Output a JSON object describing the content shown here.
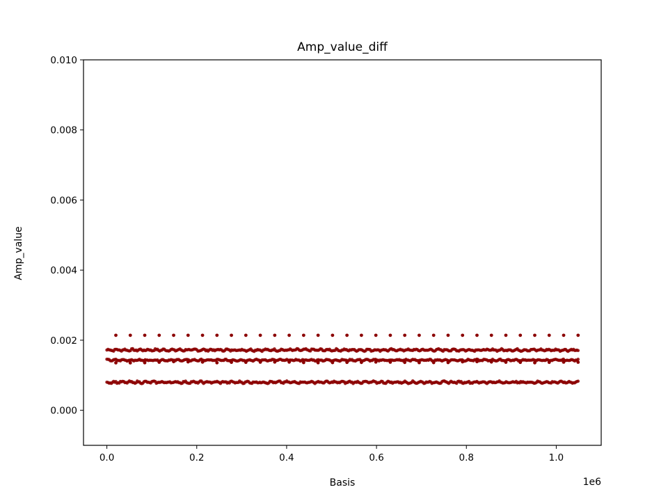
{
  "chart_data": {
    "type": "scatter",
    "title": "Amp_value_diff",
    "xlabel": "Basis",
    "ylabel": "Amp_value",
    "x_offset_text": "1e6",
    "xlim": [
      -0.052,
      1.1
    ],
    "ylim": [
      -0.001,
      0.01
    ],
    "x_ticks": [
      0.0,
      0.2,
      0.4,
      0.6,
      0.8,
      1.0
    ],
    "x_tick_labels": [
      "0.0",
      "0.2",
      "0.4",
      "0.6",
      "0.8",
      "1.0"
    ],
    "y_ticks": [
      0.0,
      0.002,
      0.004,
      0.006,
      0.008,
      0.01
    ],
    "y_tick_labels": [
      "0.000",
      "0.002",
      "0.004",
      "0.006",
      "0.008",
      "0.010"
    ],
    "grid": false,
    "marker_color": "#8b0000",
    "series": [
      {
        "x_start": 0.0,
        "x_end": 1.048576,
        "y_center": 0.00172,
        "y_jitter": 2e-05,
        "dense": true
      },
      {
        "x_start": 0.0,
        "x_end": 1.048576,
        "y_center": 0.00143,
        "y_jitter": 1.5e-05,
        "dense": true
      },
      {
        "x_start": 0.0,
        "x_end": 1.048576,
        "y_center": 0.0008,
        "y_jitter": 2e-05,
        "dense": true
      },
      {
        "x_start": 0.02,
        "x_end": 1.048576,
        "y_center": 0.00214,
        "y_jitter": 0.0,
        "dense": false
      },
      {
        "x_start": 0.02,
        "x_end": 1.048576,
        "y_center": 0.00137,
        "y_jitter": 1e-05,
        "dense": false
      }
    ]
  }
}
